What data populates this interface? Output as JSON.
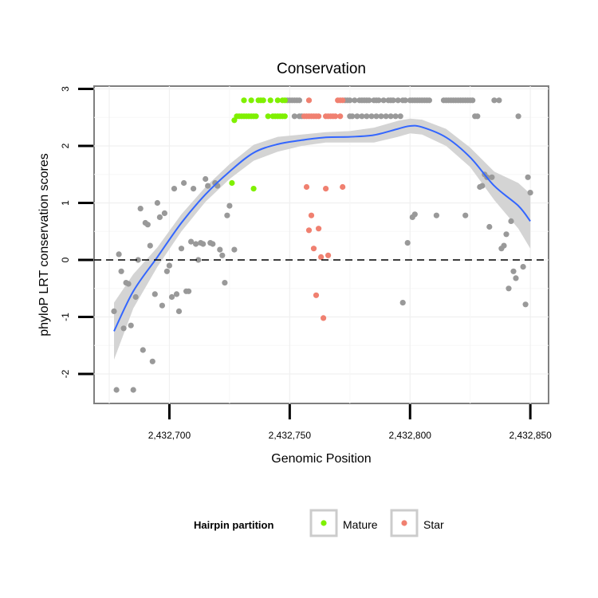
{
  "chart_data": {
    "type": "scatter",
    "title": "Conservation",
    "xlabel": "Genomic Position",
    "ylabel": "phyloP LRT conservation scores",
    "xlim": [
      2432675,
      2432850
    ],
    "ylim": [
      -2.5,
      3.0
    ],
    "x_ticks": [
      2432700,
      2432750,
      2432800,
      2432850
    ],
    "x_tick_labels": [
      "2,432,700",
      "2,432,750",
      "2,432,800",
      "2,432,850"
    ],
    "y_ticks": [
      -2,
      -1,
      0,
      1,
      2,
      3
    ],
    "y_tick_labels": [
      "-2",
      "-1",
      "0",
      "1",
      "2",
      "3"
    ],
    "grid": true,
    "reference_line": {
      "y": 0,
      "style": "dashed"
    },
    "legend": {
      "title": "Hairpin partition",
      "placement": "bottom",
      "entries": [
        {
          "label": "Mature",
          "color": "#7ff000"
        },
        {
          "label": "Star",
          "color": "#f08070"
        }
      ]
    },
    "colors": {
      "other": "#999999",
      "mature": "#7ff000",
      "star": "#f08070",
      "smooth": "#3366ff",
      "band": "#d4d4d4"
    },
    "series": [
      {
        "group": "other",
        "points": [
          [
            2432677,
            -0.9
          ],
          [
            2432678,
            -2.28
          ],
          [
            2432679,
            0.1
          ],
          [
            2432680,
            -0.2
          ],
          [
            2432681,
            -1.2
          ],
          [
            2432682,
            -0.4
          ],
          [
            2432683,
            -0.42
          ],
          [
            2432684,
            -1.15
          ],
          [
            2432685,
            -2.28
          ],
          [
            2432686,
            -0.65
          ],
          [
            2432687,
            0.0
          ],
          [
            2432688,
            0.9
          ],
          [
            2432689,
            -1.58
          ],
          [
            2432690,
            0.65
          ],
          [
            2432691,
            0.62
          ],
          [
            2432692,
            0.25
          ],
          [
            2432693,
            -1.78
          ],
          [
            2432694,
            -0.6
          ],
          [
            2432695,
            1.0
          ],
          [
            2432696,
            0.75
          ],
          [
            2432697,
            -0.8
          ],
          [
            2432698,
            0.82
          ],
          [
            2432699,
            -0.2
          ],
          [
            2432700,
            -0.1
          ],
          [
            2432701,
            -0.65
          ],
          [
            2432702,
            1.25
          ],
          [
            2432703,
            -0.6
          ],
          [
            2432704,
            -0.9
          ],
          [
            2432705,
            0.2
          ],
          [
            2432706,
            1.35
          ],
          [
            2432707,
            -0.55
          ],
          [
            2432708,
            -0.55
          ],
          [
            2432709,
            0.32
          ],
          [
            2432710,
            1.25
          ],
          [
            2432711,
            0.28
          ],
          [
            2432712,
            0.0
          ],
          [
            2432713,
            0.3
          ],
          [
            2432714,
            0.28
          ],
          [
            2432715,
            1.42
          ],
          [
            2432716,
            1.3
          ],
          [
            2432717,
            0.3
          ],
          [
            2432718,
            0.28
          ],
          [
            2432719,
            1.35
          ],
          [
            2432720,
            1.3
          ],
          [
            2432721,
            0.18
          ],
          [
            2432722,
            0.08
          ],
          [
            2432723,
            -0.4
          ],
          [
            2432724,
            0.78
          ],
          [
            2432725,
            0.95
          ],
          [
            2432727,
            0.18
          ],
          [
            2432749,
            2.8
          ],
          [
            2432750,
            2.8
          ],
          [
            2432751,
            2.8
          ],
          [
            2432752,
            2.8
          ],
          [
            2432752,
            2.52
          ],
          [
            2432753,
            2.8
          ],
          [
            2432754,
            2.8
          ],
          [
            2432754,
            2.52
          ],
          [
            2432755,
            2.52
          ],
          [
            2432773,
            2.8
          ],
          [
            2432774,
            2.8
          ],
          [
            2432775,
            2.8
          ],
          [
            2432775,
            2.52
          ],
          [
            2432776,
            2.52
          ],
          [
            2432777,
            2.8
          ],
          [
            2432778,
            2.52
          ],
          [
            2432779,
            2.8
          ],
          [
            2432780,
            2.8
          ],
          [
            2432780,
            2.52
          ],
          [
            2432781,
            2.8
          ],
          [
            2432782,
            2.8
          ],
          [
            2432782,
            2.52
          ],
          [
            2432783,
            2.8
          ],
          [
            2432784,
            2.52
          ],
          [
            2432785,
            2.8
          ],
          [
            2432786,
            2.8
          ],
          [
            2432786,
            2.52
          ],
          [
            2432787,
            2.8
          ],
          [
            2432788,
            2.52
          ],
          [
            2432789,
            2.8
          ],
          [
            2432790,
            2.52
          ],
          [
            2432791,
            2.8
          ],
          [
            2432792,
            2.8
          ],
          [
            2432792,
            2.52
          ],
          [
            2432793,
            2.8
          ],
          [
            2432794,
            2.52
          ],
          [
            2432795,
            2.8
          ],
          [
            2432796,
            2.52
          ],
          [
            2432797,
            2.8
          ],
          [
            2432797,
            -0.75
          ],
          [
            2432798,
            2.8
          ],
          [
            2432799,
            0.3
          ],
          [
            2432800,
            2.8
          ],
          [
            2432801,
            2.8
          ],
          [
            2432801,
            0.75
          ],
          [
            2432802,
            2.8
          ],
          [
            2432802,
            0.8
          ],
          [
            2432803,
            2.8
          ],
          [
            2432804,
            2.8
          ],
          [
            2432805,
            2.8
          ],
          [
            2432806,
            2.8
          ],
          [
            2432807,
            2.8
          ],
          [
            2432808,
            2.8
          ],
          [
            2432811,
            0.78
          ],
          [
            2432814,
            2.8
          ],
          [
            2432815,
            2.8
          ],
          [
            2432816,
            2.8
          ],
          [
            2432817,
            2.8
          ],
          [
            2432818,
            2.8
          ],
          [
            2432819,
            2.8
          ],
          [
            2432820,
            2.8
          ],
          [
            2432821,
            2.8
          ],
          [
            2432822,
            2.8
          ],
          [
            2432823,
            2.8
          ],
          [
            2432823,
            0.78
          ],
          [
            2432824,
            2.8
          ],
          [
            2432825,
            2.8
          ],
          [
            2432826,
            2.8
          ],
          [
            2432827,
            2.52
          ],
          [
            2432828,
            2.52
          ],
          [
            2432829,
            1.28
          ],
          [
            2432830,
            1.3
          ],
          [
            2432831,
            1.5
          ],
          [
            2432832,
            1.45
          ],
          [
            2432833,
            0.58
          ],
          [
            2432834,
            1.45
          ],
          [
            2432835,
            2.8
          ],
          [
            2432837,
            2.8
          ],
          [
            2432838,
            0.2
          ],
          [
            2432839,
            0.25
          ],
          [
            2432840,
            0.45
          ],
          [
            2432841,
            -0.5
          ],
          [
            2432842,
            0.68
          ],
          [
            2432843,
            -0.2
          ],
          [
            2432844,
            -0.32
          ],
          [
            2432845,
            2.52
          ],
          [
            2432847,
            -0.12
          ],
          [
            2432848,
            -0.78
          ],
          [
            2432849,
            1.45
          ],
          [
            2432850,
            1.18
          ]
        ]
      },
      {
        "group": "mature",
        "name": "Mature",
        "points": [
          [
            2432726,
            1.35
          ],
          [
            2432727,
            2.45
          ],
          [
            2432728,
            2.52
          ],
          [
            2432729,
            2.52
          ],
          [
            2432730,
            2.52
          ],
          [
            2432731,
            2.8
          ],
          [
            2432731,
            2.52
          ],
          [
            2432732,
            2.52
          ],
          [
            2432733,
            2.52
          ],
          [
            2432734,
            2.52
          ],
          [
            2432734,
            2.8
          ],
          [
            2432735,
            2.52
          ],
          [
            2432735,
            1.25
          ],
          [
            2432736,
            2.52
          ],
          [
            2432737,
            2.8
          ],
          [
            2432738,
            2.8
          ],
          [
            2432739,
            2.8
          ],
          [
            2432741,
            2.52
          ],
          [
            2432742,
            2.8
          ],
          [
            2432743,
            2.52
          ],
          [
            2432744,
            2.52
          ],
          [
            2432745,
            2.8
          ],
          [
            2432745,
            2.52
          ],
          [
            2432746,
            2.52
          ],
          [
            2432747,
            2.8
          ],
          [
            2432747,
            2.52
          ],
          [
            2432748,
            2.8
          ],
          [
            2432748,
            2.52
          ]
        ]
      },
      {
        "group": "star",
        "name": "Star",
        "points": [
          [
            2432756,
            2.52
          ],
          [
            2432757,
            2.52
          ],
          [
            2432757,
            1.28
          ],
          [
            2432758,
            2.8
          ],
          [
            2432758,
            2.52
          ],
          [
            2432758,
            0.52
          ],
          [
            2432759,
            2.52
          ],
          [
            2432759,
            0.78
          ],
          [
            2432760,
            2.52
          ],
          [
            2432760,
            0.2
          ],
          [
            2432761,
            2.52
          ],
          [
            2432761,
            -0.62
          ],
          [
            2432762,
            2.52
          ],
          [
            2432762,
            0.55
          ],
          [
            2432763,
            0.05
          ],
          [
            2432764,
            -1.02
          ],
          [
            2432765,
            2.52
          ],
          [
            2432765,
            1.25
          ],
          [
            2432766,
            2.52
          ],
          [
            2432766,
            0.08
          ],
          [
            2432767,
            2.52
          ],
          [
            2432768,
            2.52
          ],
          [
            2432769,
            2.52
          ],
          [
            2432770,
            2.8
          ],
          [
            2432771,
            2.8
          ],
          [
            2432771,
            2.52
          ],
          [
            2432772,
            2.8
          ],
          [
            2432772,
            1.28
          ]
        ]
      }
    ],
    "smooth": {
      "x": [
        2432677,
        2432685,
        2432695,
        2432705,
        2432715,
        2432725,
        2432735,
        2432745,
        2432755,
        2432765,
        2432775,
        2432785,
        2432795,
        2432800,
        2432805,
        2432815,
        2432825,
        2432835,
        2432845,
        2432850
      ],
      "y": [
        -1.25,
        -0.55,
        0.05,
        0.65,
        1.15,
        1.55,
        1.88,
        2.03,
        2.1,
        2.15,
        2.16,
        2.19,
        2.3,
        2.35,
        2.33,
        2.15,
        1.8,
        1.3,
        0.95,
        0.68
      ],
      "lower": [
        -1.75,
        -0.85,
        -0.12,
        0.5,
        1.02,
        1.42,
        1.74,
        1.9,
        2.0,
        2.06,
        2.06,
        2.06,
        2.16,
        2.22,
        2.2,
        2.0,
        1.63,
        1.05,
        0.55,
        0.2
      ],
      "upper": [
        -0.75,
        -0.25,
        0.22,
        0.8,
        1.28,
        1.68,
        2.02,
        2.16,
        2.2,
        2.24,
        2.26,
        2.32,
        2.44,
        2.48,
        2.46,
        2.3,
        1.97,
        1.55,
        1.35,
        1.16
      ]
    }
  }
}
